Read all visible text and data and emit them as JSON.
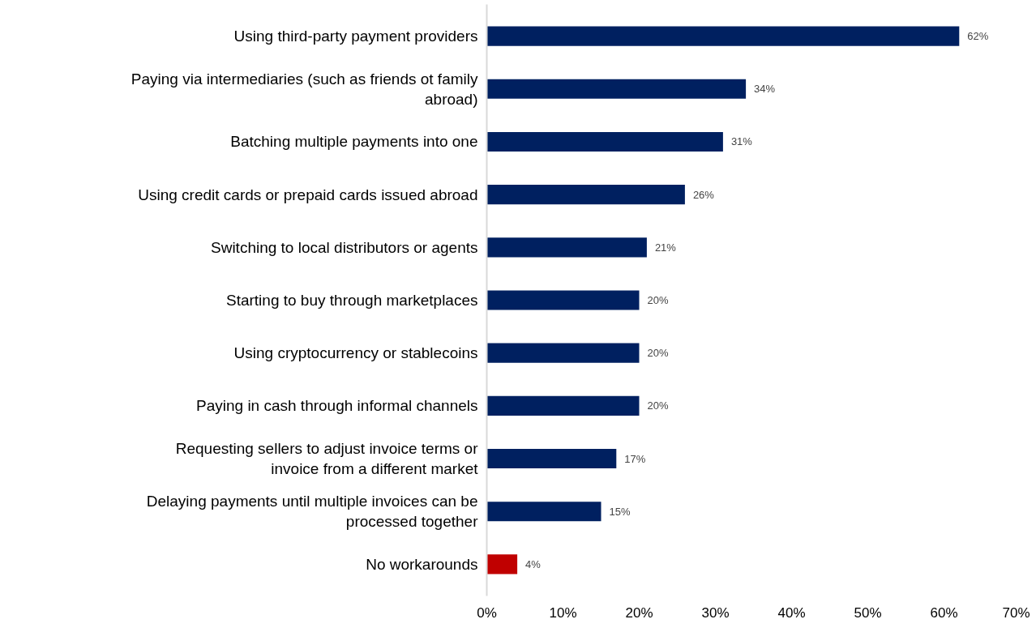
{
  "chart_data": {
    "type": "bar",
    "orientation": "horizontal",
    "categories": [
      "Using third-party payment providers",
      "Paying via intermediaries (such as friends ot family abroad)",
      "Batching multiple payments into one",
      "Using credit cards or prepaid cards issued abroad",
      "Switching to local distributors or agents",
      "Starting to buy through marketplaces",
      "Using cryptocurrency or stablecoins",
      "Paying in cash through informal channels",
      "Requesting sellers to adjust invoice terms or invoice from a different market",
      "Delaying payments until multiple invoices can be processed together",
      "No workarounds"
    ],
    "values": [
      62,
      34,
      31,
      26,
      21,
      20,
      20,
      20,
      17,
      15,
      4
    ],
    "colors": [
      "#002060",
      "#002060",
      "#002060",
      "#002060",
      "#002060",
      "#002060",
      "#002060",
      "#002060",
      "#002060",
      "#002060",
      "#c00000"
    ],
    "value_labels": [
      "62%",
      "34%",
      "31%",
      "26%",
      "21%",
      "20%",
      "20%",
      "20%",
      "17%",
      "15%",
      "4%"
    ],
    "xlim": [
      0,
      70
    ],
    "xticks": [
      {
        "value": 0,
        "label": "0%"
      },
      {
        "value": 10,
        "label": "10%"
      },
      {
        "value": 20,
        "label": "20%"
      },
      {
        "value": 30,
        "label": "30%"
      },
      {
        "value": 40,
        "label": "40%"
      },
      {
        "value": 50,
        "label": "50%"
      },
      {
        "value": 60,
        "label": "60%"
      },
      {
        "value": 70,
        "label": "70%"
      }
    ],
    "grid": false
  }
}
